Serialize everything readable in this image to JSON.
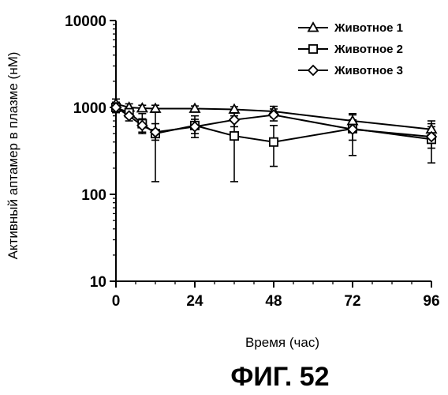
{
  "chart_data": {
    "type": "line",
    "title": "",
    "xlabel": "Время (час)",
    "ylabel": "Активный аптамер в плазме (нМ)",
    "caption": "ФИГ. 52",
    "x_ticks": [
      0,
      24,
      48,
      72,
      96
    ],
    "y_ticks": [
      10,
      100,
      1000,
      10000
    ],
    "y_tick_labels": [
      "10",
      "100",
      "1000",
      "10000"
    ],
    "xlim": [
      0,
      96
    ],
    "ylim": [
      10,
      10000
    ],
    "y_scale": "log",
    "grid": false,
    "legend_position": "top-right",
    "series": [
      {
        "name": "Животное 1",
        "marker": "triangle",
        "points": [
          {
            "x": 0,
            "y": 1100,
            "lo": 950,
            "hi": 1250
          },
          {
            "x": 4,
            "y": 1000,
            "lo": 900,
            "hi": 1100
          },
          {
            "x": 8,
            "y": 980,
            "lo": 900,
            "hi": 1060
          },
          {
            "x": 12,
            "y": 970,
            "lo": 880,
            "hi": 1060
          },
          {
            "x": 24,
            "y": 970,
            "lo": 900,
            "hi": 1040
          },
          {
            "x": 36,
            "y": 950,
            "lo": 880,
            "hi": 1020
          },
          {
            "x": 48,
            "y": 900,
            "lo": 780,
            "hi": 1030
          },
          {
            "x": 72,
            "y": 700,
            "lo": 600,
            "hi": 820
          },
          {
            "x": 96,
            "y": 560,
            "lo": 460,
            "hi": 700
          }
        ]
      },
      {
        "name": "Животное 2",
        "marker": "square",
        "points": [
          {
            "x": 0,
            "y": 1000,
            "lo": 870,
            "hi": 1150
          },
          {
            "x": 4,
            "y": 870,
            "lo": 780,
            "hi": 970
          },
          {
            "x": 8,
            "y": 650,
            "lo": 500,
            "hi": 850
          },
          {
            "x": 12,
            "y": 500,
            "lo": 140,
            "hi": 900
          },
          {
            "x": 24,
            "y": 620,
            "lo": 450,
            "hi": 800
          },
          {
            "x": 36,
            "y": 470,
            "lo": 140,
            "hi": 800
          },
          {
            "x": 48,
            "y": 400,
            "lo": 210,
            "hi": 620
          },
          {
            "x": 72,
            "y": 570,
            "lo": 280,
            "hi": 850
          },
          {
            "x": 96,
            "y": 430,
            "lo": 230,
            "hi": 650
          }
        ]
      },
      {
        "name": "Животное 3",
        "marker": "diamond",
        "points": [
          {
            "x": 0,
            "y": 1000,
            "lo": 880,
            "hi": 1130
          },
          {
            "x": 4,
            "y": 800,
            "lo": 700,
            "hi": 900
          },
          {
            "x": 8,
            "y": 620,
            "lo": 520,
            "hi": 740
          },
          {
            "x": 12,
            "y": 520,
            "lo": 420,
            "hi": 650
          },
          {
            "x": 24,
            "y": 600,
            "lo": 500,
            "hi": 730
          },
          {
            "x": 36,
            "y": 720,
            "lo": 600,
            "hi": 860
          },
          {
            "x": 48,
            "y": 820,
            "lo": 700,
            "hi": 960
          },
          {
            "x": 72,
            "y": 560,
            "lo": 420,
            "hi": 720
          },
          {
            "x": 96,
            "y": 460,
            "lo": 340,
            "hi": 600
          }
        ]
      }
    ]
  }
}
